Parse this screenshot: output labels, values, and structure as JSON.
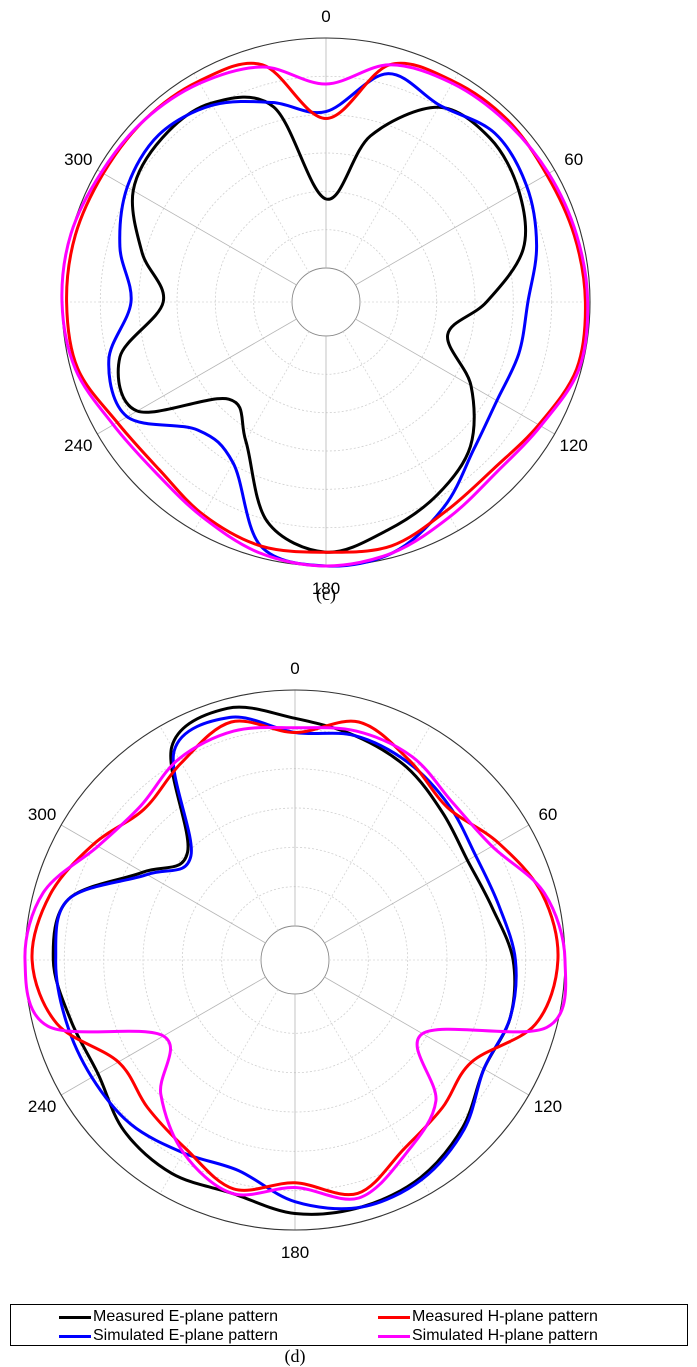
{
  "chart_data": [
    {
      "type": "polar-line",
      "caption": "(c)",
      "angle_ticks": [
        "0",
        "60",
        "120",
        "180",
        "240",
        "300"
      ],
      "angle_ticks_unit": "degrees, clockwise from top",
      "radial_rings": 6,
      "grid": true,
      "series": [
        {
          "name": "Measured E-plane pattern",
          "color": "#000000",
          "theta": [
            0,
            15,
            30,
            45,
            60,
            75,
            90,
            105,
            120,
            135,
            150,
            165,
            180,
            195,
            210,
            225,
            240,
            255,
            270,
            285,
            300,
            315,
            330,
            345,
            360
          ],
          "r": [
            0.3,
            0.6,
            0.83,
            0.86,
            0.82,
            0.74,
            0.55,
            0.4,
            0.58,
            0.74,
            0.82,
            0.88,
            0.94,
            0.84,
            0.55,
            0.45,
            0.8,
            0.78,
            0.56,
            0.68,
            0.82,
            0.86,
            0.85,
            0.73,
            0.3
          ]
        },
        {
          "name": "Simulated E-plane pattern",
          "color": "#0000ff",
          "theta": [
            0,
            15,
            30,
            45,
            60,
            75,
            90,
            105,
            120,
            135,
            150,
            165,
            180,
            195,
            210,
            225,
            240,
            255,
            270,
            285,
            300,
            315,
            330,
            345,
            360
          ],
          "r": [
            0.68,
            0.88,
            0.84,
            0.89,
            0.86,
            0.8,
            0.73,
            0.72,
            0.71,
            0.76,
            0.88,
            0.98,
            1.0,
            0.95,
            0.66,
            0.64,
            0.85,
            0.83,
            0.7,
            0.78,
            0.85,
            0.88,
            0.84,
            0.75,
            0.68
          ]
        },
        {
          "name": "Measured H-plane pattern",
          "color": "#ff0000",
          "theta": [
            0,
            15,
            30,
            45,
            60,
            75,
            90,
            105,
            120,
            135,
            150,
            165,
            180,
            195,
            210,
            225,
            240,
            255,
            270,
            285,
            300,
            315,
            330,
            345,
            360
          ],
          "r": [
            0.65,
            0.92,
            0.96,
            0.97,
            0.96,
            0.97,
            0.98,
            0.98,
            0.92,
            0.88,
            0.9,
            0.95,
            0.94,
            0.95,
            0.92,
            0.88,
            0.9,
            0.97,
            0.98,
            0.98,
            0.97,
            0.97,
            0.96,
            0.92,
            0.65
          ]
        },
        {
          "name": "Simulated H-plane pattern",
          "color": "#ff00ff",
          "theta": [
            0,
            15,
            30,
            45,
            60,
            75,
            90,
            105,
            120,
            135,
            150,
            165,
            180,
            195,
            210,
            225,
            240,
            255,
            270,
            285,
            300,
            315,
            330,
            345,
            360
          ],
          "r": [
            0.8,
            0.92,
            0.95,
            0.96,
            0.97,
            0.98,
            0.99,
            0.99,
            0.93,
            0.9,
            0.93,
            0.98,
            1.0,
            0.98,
            0.93,
            0.9,
            0.92,
            0.98,
            1.0,
            1.0,
            0.98,
            0.97,
            0.95,
            0.91,
            0.8
          ]
        }
      ]
    },
    {
      "type": "polar-line",
      "caption": "(d)",
      "angle_ticks": [
        "0",
        "60",
        "120",
        "180",
        "240",
        "300"
      ],
      "angle_ticks_unit": "degrees, clockwise from top",
      "radial_rings": 6,
      "grid": true,
      "series": [
        {
          "name": "Measured E-plane pattern",
          "color": "#000000",
          "theta": [
            0,
            15,
            30,
            45,
            60,
            75,
            90,
            105,
            120,
            135,
            150,
            165,
            180,
            195,
            210,
            225,
            240,
            255,
            270,
            285,
            300,
            315,
            330,
            345,
            360
          ],
          "r": [
            0.88,
            0.84,
            0.8,
            0.74,
            0.7,
            0.72,
            0.78,
            0.8,
            0.78,
            0.86,
            0.92,
            0.94,
            0.93,
            0.88,
            0.9,
            0.88,
            0.82,
            0.84,
            0.88,
            0.85,
            0.6,
            0.5,
            0.9,
            0.96,
            0.88
          ]
        },
        {
          "name": "Simulated E-plane pattern",
          "color": "#0000ff",
          "theta": [
            0,
            15,
            30,
            45,
            60,
            75,
            90,
            105,
            120,
            135,
            150,
            165,
            180,
            195,
            210,
            225,
            240,
            255,
            270,
            285,
            300,
            315,
            330,
            345,
            360
          ],
          "r": [
            0.82,
            0.84,
            0.82,
            0.78,
            0.74,
            0.75,
            0.79,
            0.8,
            0.78,
            0.87,
            0.93,
            0.94,
            0.88,
            0.78,
            0.8,
            0.84,
            0.85,
            0.86,
            0.87,
            0.85,
            0.58,
            0.48,
            0.88,
            0.92,
            0.82
          ]
        },
        {
          "name": "Measured H-plane pattern",
          "color": "#ff0000",
          "theta": [
            0,
            15,
            30,
            45,
            60,
            75,
            90,
            105,
            120,
            135,
            150,
            165,
            180,
            195,
            210,
            225,
            240,
            255,
            270,
            285,
            300,
            315,
            330,
            345,
            360
          ],
          "r": [
            0.82,
            0.9,
            0.83,
            0.77,
            0.85,
            0.94,
            0.97,
            0.91,
            0.72,
            0.74,
            0.78,
            0.88,
            0.8,
            0.86,
            0.78,
            0.74,
            0.72,
            0.9,
            0.97,
            0.93,
            0.84,
            0.76,
            0.82,
            0.9,
            0.82
          ]
        },
        {
          "name": "Simulated H-plane pattern",
          "color": "#ff00ff",
          "theta": [
            0,
            15,
            30,
            45,
            60,
            75,
            90,
            105,
            120,
            135,
            150,
            165,
            180,
            195,
            210,
            225,
            240,
            255,
            270,
            285,
            300,
            315,
            330,
            345,
            360
          ],
          "r": [
            0.84,
            0.86,
            0.85,
            0.8,
            0.82,
            0.95,
            1.0,
            0.96,
            0.48,
            0.7,
            0.8,
            0.9,
            0.82,
            0.88,
            0.8,
            0.66,
            0.5,
            0.94,
            1.0,
            0.96,
            0.82,
            0.78,
            0.84,
            0.86,
            0.84
          ]
        }
      ]
    }
  ],
  "legend": {
    "items": [
      {
        "label": "Measured E-plane pattern",
        "color": "#000000"
      },
      {
        "label": "Measured H-plane pattern",
        "color": "#ff0000"
      },
      {
        "label": "Simulated E-plane pattern",
        "color": "#0000ff"
      },
      {
        "label": "Simulated H-plane pattern",
        "color": "#ff00ff"
      }
    ]
  }
}
